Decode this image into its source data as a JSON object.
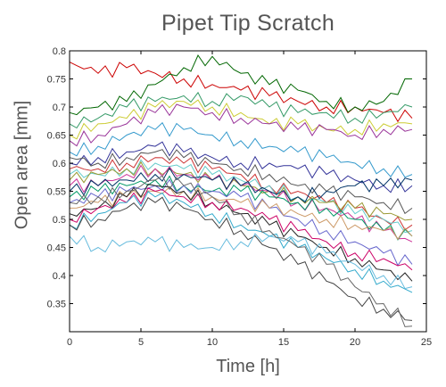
{
  "chart_data": {
    "type": "line",
    "title": "Pipet Tip Scratch",
    "xlabel": "Time [h]",
    "ylabel": "Open area [mm]",
    "xlim": [
      0,
      25
    ],
    "ylim": [
      0.3,
      0.8
    ],
    "xticks": [
      "0",
      "5",
      "10",
      "15",
      "20",
      "25"
    ],
    "yticks": [
      "0.35",
      "0.4",
      "0.45",
      "0.5",
      "0.55",
      "0.6",
      "0.65",
      "0.7",
      "0.75",
      "0.8"
    ],
    "grid": false,
    "legend": "none",
    "x": [
      0,
      2,
      4,
      6,
      8,
      10,
      12,
      14,
      16,
      18,
      20,
      22,
      24
    ],
    "series": [
      {
        "color": "#cc0000",
        "values": [
          0.78,
          0.76,
          0.77,
          0.76,
          0.75,
          0.74,
          0.73,
          0.72,
          0.71,
          0.7,
          0.7,
          0.69,
          0.68
        ]
      },
      {
        "color": "#006600",
        "values": [
          0.69,
          0.7,
          0.71,
          0.74,
          0.77,
          0.79,
          0.76,
          0.74,
          0.73,
          0.71,
          0.7,
          0.71,
          0.75
        ]
      },
      {
        "color": "#339966",
        "values": [
          0.67,
          0.68,
          0.7,
          0.71,
          0.72,
          0.71,
          0.72,
          0.7,
          0.69,
          0.69,
          0.68,
          0.69,
          0.7
        ]
      },
      {
        "color": "#cccc33",
        "values": [
          0.65,
          0.67,
          0.68,
          0.7,
          0.71,
          0.7,
          0.69,
          0.67,
          0.67,
          0.66,
          0.66,
          0.67,
          0.67
        ]
      },
      {
        "color": "#993399",
        "values": [
          0.64,
          0.65,
          0.67,
          0.69,
          0.7,
          0.69,
          0.68,
          0.67,
          0.66,
          0.66,
          0.65,
          0.66,
          0.66
        ]
      },
      {
        "color": "#3399cc",
        "values": [
          0.62,
          0.63,
          0.65,
          0.66,
          0.66,
          0.65,
          0.64,
          0.63,
          0.62,
          0.61,
          0.6,
          0.59,
          0.58
        ]
      },
      {
        "color": "#333399",
        "values": [
          0.6,
          0.61,
          0.62,
          0.63,
          0.62,
          0.61,
          0.6,
          0.6,
          0.59,
          0.58,
          0.57,
          0.56,
          0.56
        ]
      },
      {
        "color": "#555555",
        "values": [
          0.61,
          0.6,
          0.61,
          0.62,
          0.61,
          0.6,
          0.59,
          0.58,
          0.56,
          0.55,
          0.54,
          0.53,
          0.52
        ]
      },
      {
        "color": "#cc3333",
        "values": [
          0.59,
          0.59,
          0.6,
          0.61,
          0.6,
          0.59,
          0.58,
          0.56,
          0.55,
          0.53,
          0.52,
          0.5,
          0.49
        ]
      },
      {
        "color": "#66cccc",
        "values": [
          0.58,
          0.58,
          0.59,
          0.6,
          0.59,
          0.58,
          0.57,
          0.56,
          0.54,
          0.53,
          0.51,
          0.5,
          0.48
        ]
      },
      {
        "color": "#999933",
        "values": [
          0.57,
          0.58,
          0.59,
          0.59,
          0.58,
          0.57,
          0.56,
          0.55,
          0.54,
          0.53,
          0.52,
          0.51,
          0.5
        ]
      },
      {
        "color": "#cc3399",
        "values": [
          0.56,
          0.56,
          0.58,
          0.59,
          0.58,
          0.57,
          0.56,
          0.55,
          0.53,
          0.52,
          0.5,
          0.48,
          0.46
        ]
      },
      {
        "color": "#003366",
        "values": [
          0.55,
          0.56,
          0.57,
          0.58,
          0.58,
          0.57,
          0.56,
          0.55,
          0.54,
          0.55,
          0.56,
          0.56,
          0.57
        ]
      },
      {
        "color": "#009966",
        "values": [
          0.54,
          0.55,
          0.56,
          0.57,
          0.56,
          0.55,
          0.55,
          0.54,
          0.53,
          0.52,
          0.5,
          0.48,
          0.47
        ]
      },
      {
        "color": "#6666cc",
        "values": [
          0.53,
          0.54,
          0.55,
          0.56,
          0.56,
          0.55,
          0.54,
          0.52,
          0.5,
          0.48,
          0.46,
          0.44,
          0.42
        ]
      },
      {
        "color": "#cc9966",
        "values": [
          0.52,
          0.53,
          0.54,
          0.55,
          0.55,
          0.54,
          0.53,
          0.52,
          0.51,
          0.5,
          0.49,
          0.48,
          0.47
        ]
      },
      {
        "color": "#222222",
        "values": [
          0.51,
          0.52,
          0.54,
          0.56,
          0.55,
          0.53,
          0.51,
          0.49,
          0.47,
          0.45,
          0.43,
          0.41,
          0.39
        ]
      },
      {
        "color": "#cc0066",
        "values": [
          0.5,
          0.52,
          0.53,
          0.55,
          0.54,
          0.53,
          0.52,
          0.5,
          0.48,
          0.46,
          0.44,
          0.43,
          0.41
        ]
      },
      {
        "color": "#33aacc",
        "values": [
          0.49,
          0.51,
          0.53,
          0.54,
          0.53,
          0.51,
          0.49,
          0.47,
          0.45,
          0.43,
          0.41,
          0.39,
          0.37
        ]
      },
      {
        "color": "#444444",
        "values": [
          0.49,
          0.5,
          0.52,
          0.53,
          0.52,
          0.5,
          0.48,
          0.45,
          0.42,
          0.39,
          0.36,
          0.34,
          0.32
        ]
      },
      {
        "color": "#66bbdd",
        "values": [
          0.47,
          0.45,
          0.46,
          0.46,
          0.45,
          0.45,
          0.46,
          0.47,
          0.46,
          0.44,
          0.42,
          0.4,
          0.38
        ]
      },
      {
        "color": "#666666",
        "values": [
          0.53,
          0.54,
          0.55,
          0.57,
          0.56,
          0.54,
          0.51,
          0.48,
          0.45,
          0.42,
          0.38,
          0.35,
          0.31
        ]
      }
    ]
  }
}
